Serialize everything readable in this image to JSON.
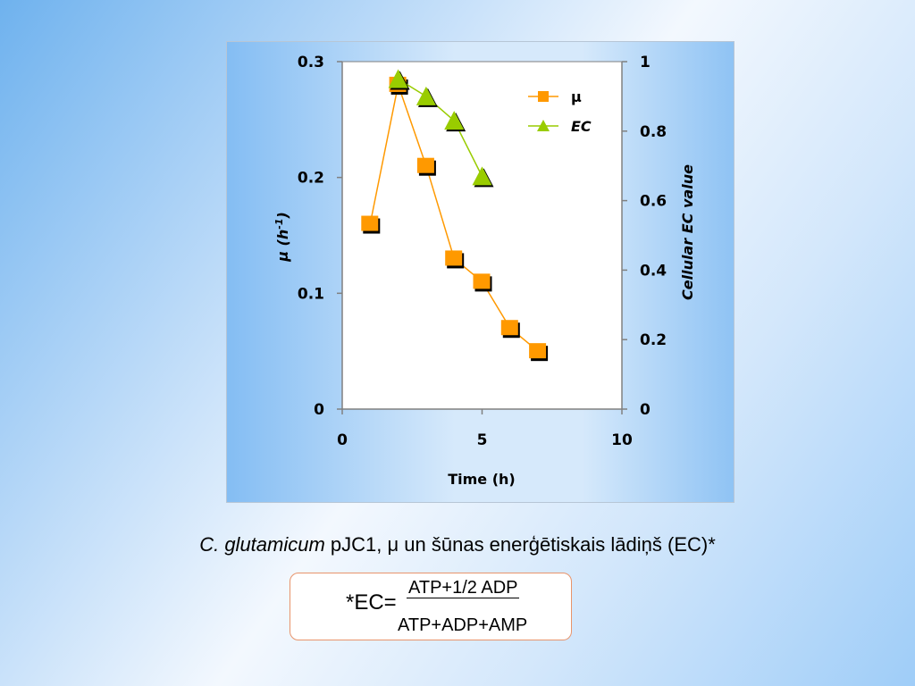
{
  "chart_data": {
    "type": "line",
    "xlabel": "Time (h)",
    "ylabel": "μ (h-1)",
    "ylabel_main": "μ (h",
    "ylabel_sup": "-1",
    "ylabel_close": ")",
    "y2label": "Cellular EC value",
    "xlim": [
      0,
      10
    ],
    "ylim": [
      0,
      0.3
    ],
    "y2lim": [
      0,
      1
    ],
    "x_ticks": [
      "0",
      "5",
      "10"
    ],
    "y_ticks": [
      "0",
      "0.1",
      "0.2",
      "0.3"
    ],
    "y2_ticks": [
      "0",
      "0.2",
      "0.4",
      "0.6",
      "0.8",
      "1"
    ],
    "legend_position": "top-right",
    "grid": false,
    "series": [
      {
        "name": "μ",
        "axis": "left",
        "marker": "square",
        "color": "#ff9900",
        "x": [
          1,
          2,
          3,
          4,
          5,
          6,
          7
        ],
        "y": [
          0.16,
          0.28,
          0.21,
          0.13,
          0.11,
          0.07,
          0.05
        ]
      },
      {
        "name": "EC",
        "axis": "right",
        "marker": "triangle",
        "color": "#99cc00",
        "x": [
          2,
          3,
          4,
          5
        ],
        "y": [
          0.95,
          0.9,
          0.83,
          0.67
        ]
      }
    ]
  },
  "caption": {
    "species": "C. glutamicum",
    "rest": " pJC1, μ un šūnas enerģētiskais lādiņš (EC)*"
  },
  "formula": {
    "lhs": "*EC=",
    "numerator": "ATP+1/2 ADP",
    "denominator": "ATP+ADP+AMP"
  }
}
